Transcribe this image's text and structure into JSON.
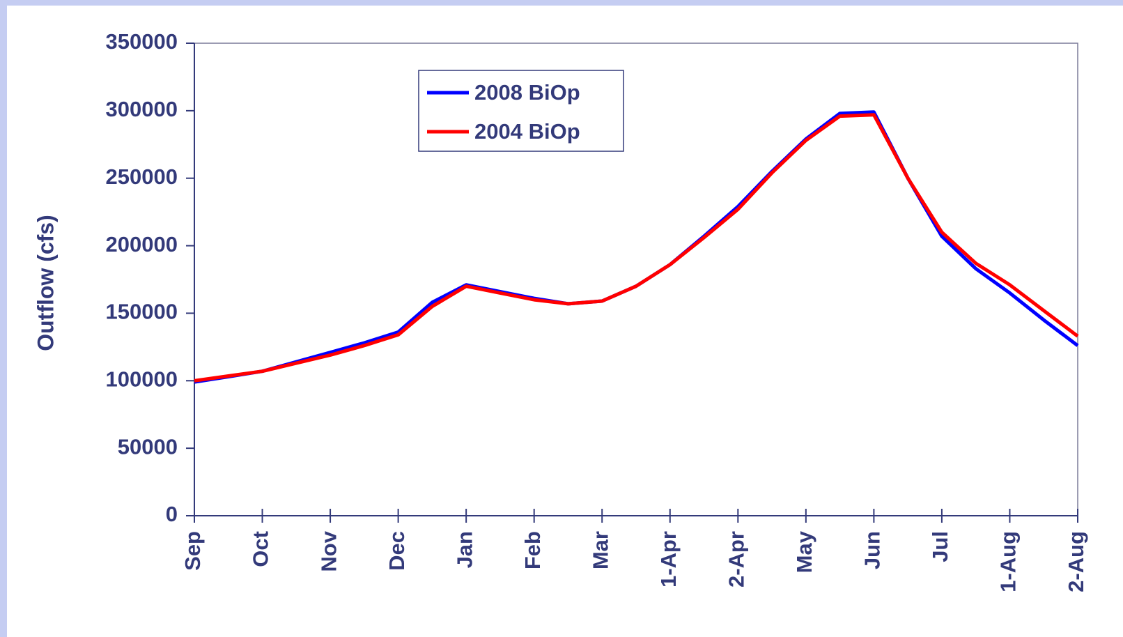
{
  "chart_data": {
    "type": "line",
    "y_label": "Outflow (cfs)",
    "categories": [
      "Sep",
      null,
      "Oct",
      null,
      "Nov",
      null,
      "Dec",
      null,
      "Jan",
      null,
      "Feb",
      null,
      "Mar",
      null,
      "1-Apr",
      null,
      "2-Apr",
      null,
      "May",
      null,
      "Jun",
      null,
      "Jul",
      null,
      "1-Aug",
      null,
      "2-Aug"
    ],
    "series": [
      {
        "name": "2008 BiOp",
        "color": "#0000ff",
        "values": [
          99000,
          103000,
          107000,
          114000,
          121000,
          128000,
          136000,
          158000,
          171000,
          166000,
          161000,
          157000,
          159000,
          170000,
          186000,
          207000,
          229000,
          255000,
          279000,
          298000,
          299000,
          250000,
          207000,
          183000,
          165000,
          145000,
          126000
        ]
      },
      {
        "name": "2004 BiOp",
        "color": "#ff0000",
        "values": [
          100000,
          103500,
          107000,
          113000,
          119000,
          126000,
          134000,
          155000,
          170000,
          165000,
          160000,
          157000,
          159000,
          170000,
          186000,
          206000,
          227000,
          254000,
          278000,
          296000,
          297000,
          250000,
          210000,
          187000,
          171000,
          152000,
          133000
        ]
      }
    ],
    "ylim": [
      0,
      350000
    ],
    "yticks": [
      0,
      50000,
      100000,
      150000,
      200000,
      250000,
      300000,
      350000
    ],
    "grid": false,
    "legend": "top-left"
  }
}
